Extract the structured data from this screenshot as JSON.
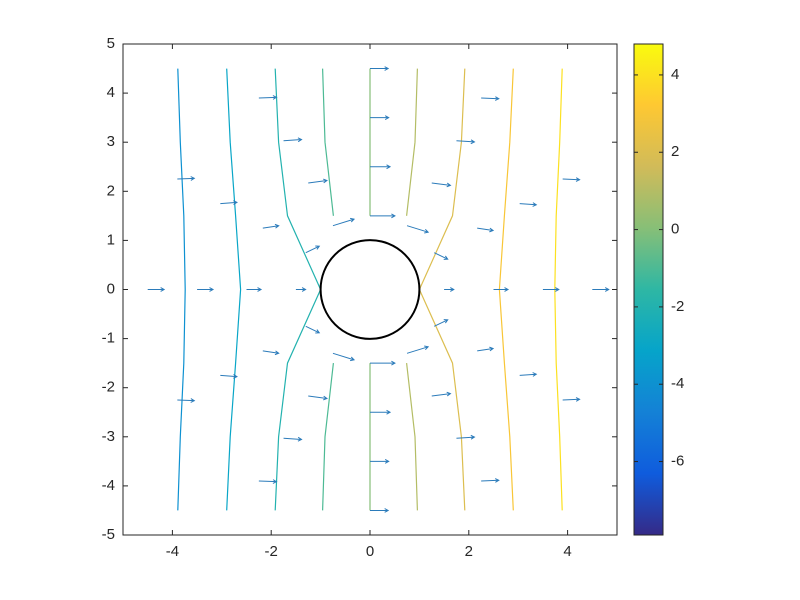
{
  "chart_data": {
    "type": "contour-quiver",
    "xlim": [
      -5,
      5
    ],
    "ylim": [
      -5,
      5
    ],
    "xticks": [
      -4,
      -2,
      0,
      2,
      4
    ],
    "yticks": [
      -5,
      -4,
      -3,
      -2,
      -1,
      0,
      1,
      2,
      3,
      4,
      5
    ],
    "clim": [
      -7.9,
      4.8
    ],
    "cticks": [
      -6,
      -4,
      -2,
      0,
      2,
      4
    ],
    "colormap": [
      "#352a87",
      "#0f5cdd",
      "#1481d6",
      "#06a4ca",
      "#2eb7a4",
      "#87bf77",
      "#d1bb59",
      "#fec832",
      "#f9fb0e"
    ],
    "circle": {
      "center": [
        0,
        0
      ],
      "radius": 1,
      "color": "#000000"
    },
    "contours": [
      {
        "level": -4,
        "x": [
          -3.89,
          -3.84,
          -3.77,
          -3.74,
          -3.77,
          -3.84,
          -3.89
        ],
        "y": [
          4.5,
          3,
          1.5,
          0,
          -1.5,
          -3,
          -4.5
        ]
      },
      {
        "level": -3,
        "x": [
          -2.9,
          -2.83,
          -2.72,
          -2.62,
          -2.72,
          -2.83,
          -2.9
        ],
        "y": [
          4.5,
          3,
          1.5,
          0,
          -1.5,
          -3,
          -4.5
        ]
      },
      {
        "level": -2,
        "x": [
          -1.92,
          -1.85,
          -1.67,
          -1,
          -1.67,
          -1.85,
          -1.92
        ],
        "y": [
          4.5,
          3,
          1.5,
          0,
          -1.5,
          -3,
          -4.5
        ]
      },
      {
        "level": -1,
        "x": [
          -0.96,
          -0.91,
          -0.74,
          null,
          -0.74,
          -0.91,
          -0.96
        ],
        "y": [
          4.5,
          3,
          1.5,
          null,
          -1.5,
          -3,
          -4.5
        ]
      },
      {
        "level": 0,
        "x": [
          0,
          0,
          0,
          null,
          0,
          0,
          0
        ],
        "y": [
          4.5,
          3,
          1.5,
          null,
          -1.5,
          -3,
          -4.5
        ]
      },
      {
        "level": 1,
        "x": [
          0.96,
          0.91,
          0.74,
          null,
          0.74,
          0.91,
          0.96
        ],
        "y": [
          4.5,
          3,
          1.5,
          null,
          -1.5,
          -3,
          -4.5
        ]
      },
      {
        "level": 2,
        "x": [
          1.92,
          1.85,
          1.67,
          1,
          1.67,
          1.85,
          1.92
        ],
        "y": [
          4.5,
          3,
          1.5,
          0,
          -1.5,
          -3,
          -4.5
        ]
      },
      {
        "level": 3,
        "x": [
          2.9,
          2.83,
          2.72,
          2.62,
          2.72,
          2.83,
          2.9
        ],
        "y": [
          4.5,
          3,
          1.5,
          0,
          -1.5,
          -3,
          -4.5
        ]
      },
      {
        "level": 4,
        "x": [
          3.89,
          3.84,
          3.77,
          3.74,
          3.77,
          3.84,
          3.89
        ],
        "y": [
          4.5,
          3,
          1.5,
          0,
          -1.5,
          -3,
          -4.5
        ]
      }
    ],
    "quiver": {
      "color": "#2b7bba",
      "x": [
        1.5,
        1.3,
        0.75,
        0,
        -0.75,
        -1.3,
        -1.5,
        -1.3,
        -0.75,
        0,
        0.75,
        1.3,
        2.5,
        2.17,
        1.25,
        0,
        -1.25,
        -2.17,
        -2.5,
        -2.17,
        -1.25,
        0,
        1.25,
        2.17,
        3.5,
        3.03,
        1.75,
        0,
        -1.75,
        -3.03,
        -3.5,
        -3.03,
        -1.75,
        0,
        1.75,
        3.03,
        4.5,
        3.9,
        2.25,
        0,
        -2.25,
        -3.9,
        -4.5,
        -3.9,
        -2.25,
        0,
        2.25,
        3.9
      ],
      "y": [
        0,
        0.75,
        1.3,
        1.5,
        1.3,
        0.75,
        0,
        -0.75,
        -1.3,
        -1.5,
        -1.3,
        -0.75,
        0,
        1.25,
        2.17,
        2.5,
        2.17,
        1.25,
        0,
        -1.25,
        -2.17,
        -2.5,
        -2.17,
        -1.25,
        0,
        1.75,
        3.03,
        3.5,
        3.03,
        1.75,
        0,
        -1.75,
        -3.03,
        -3.5,
        -3.03,
        -1.75,
        0,
        2.25,
        3.9,
        4.5,
        3.9,
        2.25,
        0,
        -2.25,
        -3.9,
        -4.5,
        -3.9,
        -2.25
      ],
      "u": [
        0.56,
        0.78,
        1.22,
        1.44,
        1.22,
        0.78,
        0.56,
        0.78,
        1.22,
        1.44,
        1.22,
        0.78,
        0.84,
        0.92,
        1.08,
        1.16,
        1.08,
        0.92,
        0.84,
        0.92,
        1.08,
        1.16,
        1.08,
        0.92,
        0.92,
        0.96,
        1.04,
        1.08,
        1.04,
        0.96,
        0.92,
        0.96,
        1.04,
        1.08,
        1.04,
        0.96,
        0.95,
        0.98,
        1.02,
        1.05,
        1.02,
        0.98,
        0.95,
        0.98,
        1.02,
        1.05,
        1.02,
        0.98
      ],
      "v": [
        0,
        -0.38,
        -0.38,
        0,
        0.38,
        0.38,
        0,
        -0.38,
        -0.38,
        0,
        0.38,
        0.38,
        0,
        -0.14,
        -0.14,
        0,
        0.14,
        0.14,
        0,
        -0.14,
        -0.14,
        0,
        0.14,
        0.14,
        0,
        -0.07,
        -0.07,
        0,
        0.07,
        0.07,
        0,
        -0.07,
        -0.07,
        0,
        0.07,
        0.07,
        0,
        -0.04,
        -0.04,
        0,
        0.04,
        0.04,
        0,
        -0.04,
        -0.04,
        0,
        0.04,
        0.04
      ]
    }
  }
}
